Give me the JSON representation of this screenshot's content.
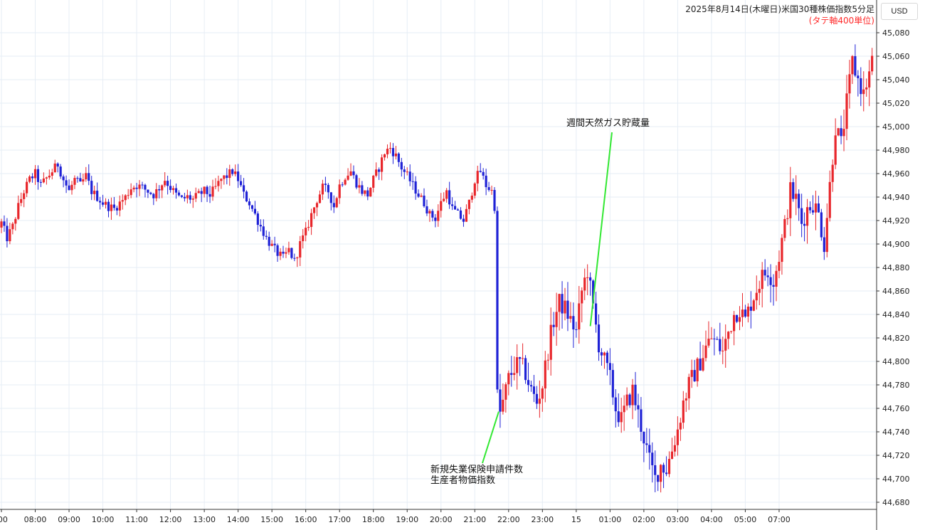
{
  "chart_data": {
    "type": "candlestick",
    "title": "2025年8月14日(木曜日)米国30種株価指数5分足",
    "subtitle": "(タテ軸400単位)",
    "currency": "USD",
    "ylim": [
      44670,
      45100
    ],
    "yticks": [
      44680,
      44700,
      44720,
      44740,
      44760,
      44780,
      44800,
      44820,
      44840,
      44860,
      44880,
      44900,
      44920,
      44940,
      44960,
      44980,
      45000,
      45020,
      45040,
      45060,
      45080
    ],
    "xticks": [
      {
        "label": ":00",
        "t": 0
      },
      {
        "label": "08:00",
        "t": 12
      },
      {
        "label": "09:00",
        "t": 24
      },
      {
        "label": "10:00",
        "t": 36
      },
      {
        "label": "11:00",
        "t": 48
      },
      {
        "label": "12:00",
        "t": 60
      },
      {
        "label": "13:00",
        "t": 72
      },
      {
        "label": "14:00",
        "t": 84
      },
      {
        "label": "15:00",
        "t": 96
      },
      {
        "label": "16:00",
        "t": 108
      },
      {
        "label": "17:00",
        "t": 120
      },
      {
        "label": "18:00",
        "t": 132
      },
      {
        "label": "19:00",
        "t": 144
      },
      {
        "label": "20:00",
        "t": 156
      },
      {
        "label": "21:00",
        "t": 168
      },
      {
        "label": "22:00",
        "t": 180
      },
      {
        "label": "23:00",
        "t": 192
      },
      {
        "label": "15",
        "t": 204
      },
      {
        "label": "01:00",
        "t": 216
      },
      {
        "label": "02:00",
        "t": 228
      },
      {
        "label": "03:00",
        "t": 240
      },
      {
        "label": "04:00",
        "t": 252
      },
      {
        "label": "05:00",
        "t": 264
      },
      {
        "label": "07:00",
        "t": 276
      }
    ],
    "anchors": [
      [
        0,
        44918
      ],
      [
        2,
        44905
      ],
      [
        4,
        44915
      ],
      [
        6,
        44932
      ],
      [
        8,
        44945
      ],
      [
        10,
        44955
      ],
      [
        12,
        44960
      ],
      [
        14,
        44950
      ],
      [
        16,
        44956
      ],
      [
        18,
        44962
      ],
      [
        20,
        44968
      ],
      [
        22,
        44955
      ],
      [
        24,
        44945
      ],
      [
        26,
        44955
      ],
      [
        28,
        44950
      ],
      [
        30,
        44958
      ],
      [
        32,
        44945
      ],
      [
        34,
        44940
      ],
      [
        36,
        44935
      ],
      [
        38,
        44932
      ],
      [
        40,
        44930
      ],
      [
        42,
        44935
      ],
      [
        44,
        44940
      ],
      [
        46,
        44948
      ],
      [
        48,
        44950
      ],
      [
        50,
        44948
      ],
      [
        52,
        44945
      ],
      [
        54,
        44942
      ],
      [
        56,
        44948
      ],
      [
        58,
        44955
      ],
      [
        60,
        44948
      ],
      [
        62,
        44942
      ],
      [
        64,
        44938
      ],
      [
        66,
        44940
      ],
      [
        68,
        44938
      ],
      [
        70,
        44942
      ],
      [
        72,
        44945
      ],
      [
        74,
        44942
      ],
      [
        76,
        44948
      ],
      [
        78,
        44955
      ],
      [
        80,
        44958
      ],
      [
        82,
        44962
      ],
      [
        84,
        44955
      ],
      [
        86,
        44942
      ],
      [
        88,
        44935
      ],
      [
        90,
        44925
      ],
      [
        92,
        44915
      ],
      [
        94,
        44905
      ],
      [
        96,
        44898
      ],
      [
        98,
        44892
      ],
      [
        100,
        44888
      ],
      [
        102,
        44895
      ],
      [
        104,
        44885
      ],
      [
        106,
        44900
      ],
      [
        108,
        44910
      ],
      [
        110,
        44925
      ],
      [
        112,
        44938
      ],
      [
        114,
        44948
      ],
      [
        116,
        44945
      ],
      [
        118,
        44932
      ],
      [
        120,
        44950
      ],
      [
        122,
        44958
      ],
      [
        124,
        44962
      ],
      [
        126,
        44952
      ],
      [
        128,
        44945
      ],
      [
        130,
        44942
      ],
      [
        132,
        44955
      ],
      [
        134,
        44965
      ],
      [
        136,
        44978
      ],
      [
        138,
        44982
      ],
      [
        140,
        44975
      ],
      [
        142,
        44965
      ],
      [
        144,
        44958
      ],
      [
        146,
        44950
      ],
      [
        148,
        44942
      ],
      [
        150,
        44935
      ],
      [
        152,
        44925
      ],
      [
        154,
        44922
      ],
      [
        156,
        44935
      ],
      [
        158,
        44945
      ],
      [
        160,
        44930
      ],
      [
        162,
        44925
      ],
      [
        164,
        44920
      ],
      [
        166,
        44935
      ],
      [
        168,
        44955
      ],
      [
        170,
        44962
      ],
      [
        172,
        44950
      ],
      [
        174,
        44945
      ],
      [
        175,
        44932
      ],
      [
        176,
        44770
      ],
      [
        177,
        44756
      ],
      [
        178,
        44765
      ],
      [
        180,
        44785
      ],
      [
        182,
        44795
      ],
      [
        184,
        44798
      ],
      [
        186,
        44790
      ],
      [
        188,
        44775
      ],
      [
        190,
        44765
      ],
      [
        192,
        44780
      ],
      [
        194,
        44810
      ],
      [
        196,
        44835
      ],
      [
        198,
        44850
      ],
      [
        200,
        44845
      ],
      [
        202,
        44835
      ],
      [
        204,
        44825
      ],
      [
        206,
        44860
      ],
      [
        208,
        44878
      ],
      [
        210,
        44845
      ],
      [
        212,
        44815
      ],
      [
        214,
        44800
      ],
      [
        216,
        44785
      ],
      [
        218,
        44760
      ],
      [
        220,
        44750
      ],
      [
        222,
        44765
      ],
      [
        224,
        44775
      ],
      [
        226,
        44755
      ],
      [
        228,
        44735
      ],
      [
        230,
        44715
      ],
      [
        232,
        44700
      ],
      [
        234,
        44712
      ],
      [
        236,
        44708
      ],
      [
        238,
        44725
      ],
      [
        240,
        44742
      ],
      [
        242,
        44765
      ],
      [
        244,
        44780
      ],
      [
        246,
        44790
      ],
      [
        248,
        44800
      ],
      [
        250,
        44812
      ],
      [
        252,
        44820
      ],
      [
        254,
        44815
      ],
      [
        256,
        44808
      ],
      [
        258,
        44825
      ],
      [
        260,
        44840
      ],
      [
        262,
        44845
      ],
      [
        264,
        44835
      ],
      [
        266,
        44850
      ],
      [
        268,
        44862
      ],
      [
        270,
        44872
      ],
      [
        272,
        44878
      ],
      [
        274,
        44868
      ],
      [
        276,
        44890
      ],
      [
        278,
        44915
      ],
      [
        280,
        44945
      ],
      [
        282,
        44938
      ],
      [
        284,
        44918
      ],
      [
        286,
        44930
      ],
      [
        288,
        44935
      ],
      [
        290,
        44925
      ],
      [
        292,
        44900
      ],
      [
        294,
        44950
      ],
      [
        296,
        45000
      ],
      [
        298,
        44985
      ],
      [
        300,
        45020
      ],
      [
        302,
        45055
      ],
      [
        304,
        45040
      ],
      [
        306,
        45028
      ],
      [
        308,
        45045
      ],
      [
        309,
        45055
      ]
    ],
    "annotations": [
      {
        "lines": [
          "週間天然ガス貯蔵量"
        ],
        "t": 209,
        "value": 44830
      },
      {
        "lines": [
          "新規失業保険申請件数",
          "生産者物価指数"
        ],
        "t": 177,
        "value": 44756
      }
    ],
    "up_color": "#e8262b",
    "down_color": "#1f22d6"
  }
}
